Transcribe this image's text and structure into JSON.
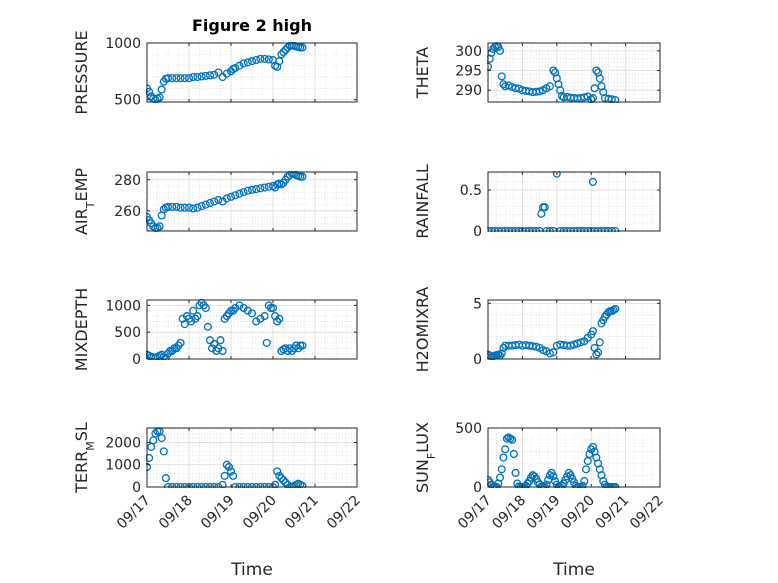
{
  "figure": {
    "title": "Figure 2 high",
    "xlabel": "Time",
    "marker_color": "#0072BD",
    "xtick_labels": [
      "09/17",
      "09/18",
      "09/19",
      "09/20",
      "09/21",
      "09/22"
    ]
  },
  "chart_data": [
    {
      "type": "scatter",
      "ylabel": "PRESSURE",
      "ylabel_sub": "",
      "xlim": [
        17,
        22
      ],
      "ylim": [
        480,
        1000
      ],
      "yticks": [
        500,
        1000
      ],
      "ytick_labels": [
        "500",
        "1000"
      ],
      "x": [
        17.0,
        17.05,
        17.1,
        17.15,
        17.2,
        17.25,
        17.3,
        17.35,
        17.4,
        17.45,
        17.5,
        17.6,
        17.7,
        17.8,
        17.9,
        18.0,
        18.1,
        18.2,
        18.3,
        18.4,
        18.5,
        18.6,
        18.7,
        18.8,
        18.9,
        19.0,
        19.05,
        19.1,
        19.2,
        19.3,
        19.4,
        19.5,
        19.6,
        19.7,
        19.8,
        19.9,
        20.0,
        20.05,
        20.1,
        20.15,
        20.2,
        20.25,
        20.3,
        20.35,
        20.4,
        20.45,
        20.5,
        20.55,
        20.6,
        20.65,
        20.7
      ],
      "y": [
        600,
        570,
        530,
        510,
        500,
        510,
        520,
        590,
        660,
        685,
        690,
        690,
        690,
        690,
        690,
        690,
        700,
        700,
        705,
        710,
        715,
        720,
        740,
        700,
        730,
        750,
        770,
        780,
        800,
        820,
        830,
        840,
        850,
        860,
        860,
        855,
        850,
        800,
        790,
        840,
        900,
        920,
        940,
        960,
        975,
        980,
        975,
        970,
        965,
        960,
        960
      ]
    },
    {
      "type": "scatter",
      "ylabel": "THETA",
      "ylabel_sub": "",
      "xlim": [
        17,
        22
      ],
      "ylim": [
        287,
        302
      ],
      "yticks": [
        290,
        295,
        300
      ],
      "ytick_labels": [
        "290",
        "295",
        "300"
      ],
      "x": [
        17.0,
        17.05,
        17.1,
        17.15,
        17.2,
        17.25,
        17.3,
        17.35,
        17.4,
        17.45,
        17.5,
        17.6,
        17.7,
        17.8,
        17.9,
        18.0,
        18.1,
        18.2,
        18.3,
        18.4,
        18.5,
        18.6,
        18.7,
        18.8,
        18.9,
        18.95,
        19.0,
        19.05,
        19.1,
        19.15,
        19.2,
        19.3,
        19.4,
        19.5,
        19.6,
        19.7,
        19.8,
        19.9,
        20.0,
        20.05,
        20.1,
        20.15,
        20.2,
        20.25,
        20.3,
        20.35,
        20.4,
        20.5,
        20.6,
        20.7
      ],
      "y": [
        296,
        298,
        299.5,
        300.5,
        301,
        301.2,
        301,
        300,
        293.5,
        291.5,
        291,
        291.2,
        290.8,
        290.5,
        290.4,
        290,
        289.8,
        289.7,
        289.5,
        289.6,
        289.7,
        290,
        290.5,
        291,
        295,
        294.5,
        293,
        291.5,
        290,
        288.5,
        288.2,
        288.3,
        288.1,
        288,
        287.9,
        288,
        288.2,
        288.4,
        287.7,
        288,
        290.5,
        295,
        294.5,
        293,
        291,
        289.5,
        288,
        287.8,
        287.7,
        287.5
      ]
    },
    {
      "type": "scatter",
      "ylabel": "AIR",
      "ylabel_sub": "T",
      "ylabel_tail": "EMP",
      "xlim": [
        17,
        22
      ],
      "ylim": [
        247,
        285
      ],
      "yticks": [
        260,
        280
      ],
      "ytick_labels": [
        "260",
        "280"
      ],
      "x": [
        17.0,
        17.05,
        17.1,
        17.15,
        17.2,
        17.25,
        17.3,
        17.35,
        17.4,
        17.45,
        17.5,
        17.6,
        17.7,
        17.8,
        17.9,
        18.0,
        18.1,
        18.2,
        18.3,
        18.4,
        18.5,
        18.6,
        18.7,
        18.8,
        18.9,
        19.0,
        19.1,
        19.2,
        19.3,
        19.4,
        19.5,
        19.6,
        19.7,
        19.8,
        19.9,
        20.0,
        20.05,
        20.1,
        20.15,
        20.2,
        20.25,
        20.3,
        20.35,
        20.4,
        20.45,
        20.5,
        20.55,
        20.6,
        20.65,
        20.7
      ],
      "y": [
        256,
        254,
        252,
        250,
        249,
        249,
        250,
        257,
        261,
        262,
        262.5,
        262.5,
        262.5,
        262,
        262,
        262,
        261.5,
        262,
        263,
        264,
        265,
        266,
        267,
        266,
        268,
        269,
        270,
        271,
        272,
        273,
        273.5,
        274,
        274.5,
        275,
        275.5,
        276,
        275,
        277,
        277.5,
        277,
        278,
        280,
        282,
        283,
        284,
        284,
        283,
        282.5,
        282,
        282
      ]
    },
    {
      "type": "scatter",
      "ylabel": "RAINFALL",
      "ylabel_sub": "",
      "xlim": [
        17,
        22
      ],
      "ylim": [
        0,
        0.72
      ],
      "yticks": [
        0,
        0.5
      ],
      "ytick_labels": [
        "0",
        "0.5"
      ],
      "x": [
        17.0,
        17.1,
        17.2,
        17.3,
        17.4,
        17.5,
        17.6,
        17.7,
        17.8,
        17.9,
        18.0,
        18.1,
        18.2,
        18.3,
        18.4,
        18.5,
        18.55,
        18.6,
        18.65,
        18.7,
        18.8,
        18.9,
        19.0,
        19.1,
        19.2,
        19.3,
        19.4,
        19.5,
        19.6,
        19.7,
        19.8,
        19.9,
        20.0,
        20.05,
        20.1,
        20.2,
        20.3,
        20.4,
        20.5,
        20.6,
        20.7
      ],
      "y": [
        0,
        0,
        0,
        0,
        0,
        0,
        0,
        0,
        0,
        0,
        0,
        0,
        0,
        0,
        0,
        0,
        0.21,
        0.29,
        0.29,
        0,
        0,
        0,
        0.7,
        0,
        0,
        0,
        0,
        0,
        0,
        0,
        0,
        0,
        0,
        0.6,
        0,
        0,
        0,
        0,
        0,
        0,
        0
      ]
    },
    {
      "type": "scatter",
      "ylabel": "MIXDEPTH",
      "ylabel_sub": "",
      "xlim": [
        17,
        22
      ],
      "ylim": [
        0,
        1100
      ],
      "yticks": [
        0,
        500,
        1000
      ],
      "ytick_labels": [
        "0",
        "500",
        "1000"
      ],
      "x": [
        17.0,
        17.05,
        17.1,
        17.15,
        17.2,
        17.25,
        17.3,
        17.35,
        17.4,
        17.45,
        17.5,
        17.55,
        17.6,
        17.65,
        17.7,
        17.75,
        17.8,
        17.85,
        17.9,
        17.95,
        18.0,
        18.05,
        18.1,
        18.15,
        18.2,
        18.25,
        18.3,
        18.35,
        18.4,
        18.45,
        18.5,
        18.55,
        18.6,
        18.65,
        18.7,
        18.75,
        18.8,
        18.85,
        18.9,
        18.95,
        19.0,
        19.05,
        19.1,
        19.2,
        19.3,
        19.4,
        19.5,
        19.6,
        19.7,
        19.8,
        19.85,
        19.9,
        19.95,
        20.0,
        20.05,
        20.1,
        20.15,
        20.2,
        20.25,
        20.3,
        20.35,
        20.4,
        20.45,
        20.5,
        20.55,
        20.6,
        20.65,
        20.7
      ],
      "y": [
        80,
        60,
        40,
        30,
        20,
        40,
        60,
        80,
        40,
        20,
        100,
        150,
        150,
        200,
        200,
        250,
        300,
        750,
        650,
        800,
        750,
        700,
        900,
        750,
        800,
        1000,
        1050,
        1000,
        950,
        600,
        350,
        200,
        280,
        150,
        200,
        350,
        150,
        750,
        800,
        850,
        900,
        900,
        950,
        1000,
        950,
        900,
        850,
        700,
        750,
        800,
        300,
        1000,
        950,
        950,
        800,
        700,
        750,
        150,
        180,
        200,
        150,
        200,
        150,
        200,
        250,
        200,
        250,
        250
      ]
    },
    {
      "type": "scatter",
      "ylabel": "H2OMIXRA",
      "ylabel_sub": "",
      "xlim": [
        17,
        22
      ],
      "ylim": [
        0,
        5.3
      ],
      "yticks": [
        0,
        5
      ],
      "ytick_labels": [
        "0",
        "5"
      ],
      "x": [
        17.0,
        17.05,
        17.1,
        17.15,
        17.2,
        17.25,
        17.3,
        17.35,
        17.4,
        17.45,
        17.5,
        17.6,
        17.7,
        17.8,
        17.9,
        18.0,
        18.1,
        18.2,
        18.3,
        18.4,
        18.5,
        18.6,
        18.7,
        18.8,
        18.9,
        19.0,
        19.1,
        19.2,
        19.3,
        19.4,
        19.5,
        19.6,
        19.7,
        19.8,
        19.9,
        20.0,
        20.05,
        20.1,
        20.15,
        20.2,
        20.25,
        20.3,
        20.35,
        20.4,
        20.45,
        20.5,
        20.55,
        20.6,
        20.65,
        20.7
      ],
      "y": [
        0.4,
        0.3,
        0.2,
        0.25,
        0.3,
        0.35,
        0.4,
        0.3,
        0.5,
        1.0,
        1.2,
        1.2,
        1.2,
        1.25,
        1.3,
        1.2,
        1.25,
        1.2,
        1.15,
        1.1,
        1.0,
        0.8,
        0.7,
        0.5,
        0.6,
        1.2,
        1.3,
        1.25,
        1.2,
        1.2,
        1.3,
        1.4,
        1.5,
        1.6,
        1.9,
        2.2,
        2.5,
        1.0,
        0.4,
        0.6,
        1.5,
        3.2,
        3.5,
        3.8,
        4.0,
        4.2,
        4.3,
        4.3,
        4.4,
        4.5
      ]
    },
    {
      "type": "scatter",
      "ylabel": "TERR",
      "ylabel_sub": "M",
      "ylabel_tail": "SL",
      "xlim": [
        17,
        22
      ],
      "ylim": [
        0,
        2650
      ],
      "yticks": [
        0,
        1000,
        2000
      ],
      "ytick_labels": [
        "0",
        "1000",
        "2000"
      ],
      "x": [
        17.0,
        17.05,
        17.1,
        17.15,
        17.2,
        17.25,
        17.3,
        17.35,
        17.4,
        17.45,
        17.5,
        17.6,
        17.7,
        17.8,
        17.9,
        18.0,
        18.1,
        18.2,
        18.3,
        18.4,
        18.5,
        18.6,
        18.7,
        18.8,
        18.85,
        18.9,
        18.95,
        19.0,
        19.05,
        19.1,
        19.2,
        19.3,
        19.4,
        19.5,
        19.6,
        19.7,
        19.8,
        19.9,
        20.0,
        20.05,
        20.1,
        20.15,
        20.2,
        20.25,
        20.3,
        20.35,
        20.4,
        20.45,
        20.5,
        20.55,
        20.6,
        20.65,
        20.7
      ],
      "y": [
        900,
        1300,
        1800,
        2100,
        2400,
        2500,
        2500,
        2200,
        1600,
        400,
        0,
        0,
        0,
        0,
        0,
        0,
        0,
        0,
        0,
        0,
        0,
        0,
        0,
        100,
        500,
        1000,
        900,
        700,
        500,
        0,
        0,
        0,
        0,
        0,
        0,
        0,
        0,
        0,
        0,
        100,
        700,
        500,
        400,
        300,
        200,
        100,
        0,
        0,
        50,
        100,
        150,
        100,
        50
      ]
    },
    {
      "type": "scatter",
      "ylabel": "SUN",
      "ylabel_sub": "F",
      "ylabel_tail": "LUX",
      "xlim": [
        17,
        22
      ],
      "ylim": [
        0,
        500
      ],
      "yticks": [
        0,
        500
      ],
      "ytick_labels": [
        "0",
        "500"
      ],
      "x": [
        17.0,
        17.05,
        17.1,
        17.15,
        17.2,
        17.25,
        17.3,
        17.35,
        17.4,
        17.45,
        17.5,
        17.55,
        17.6,
        17.65,
        17.7,
        17.75,
        17.8,
        17.85,
        17.9,
        17.95,
        18.0,
        18.05,
        18.1,
        18.15,
        18.2,
        18.25,
        18.3,
        18.35,
        18.4,
        18.45,
        18.5,
        18.55,
        18.6,
        18.65,
        18.7,
        18.75,
        18.8,
        18.85,
        18.9,
        18.95,
        19.0,
        19.05,
        19.1,
        19.15,
        19.2,
        19.25,
        19.3,
        19.35,
        19.4,
        19.45,
        19.5,
        19.55,
        19.6,
        19.65,
        19.7,
        19.75,
        19.8,
        19.85,
        19.9,
        19.95,
        20.0,
        20.05,
        20.1,
        20.15,
        20.2,
        20.25,
        20.3,
        20.35,
        20.4,
        20.45,
        20.5,
        20.55,
        20.6,
        20.65,
        20.7
      ],
      "y": [
        60,
        40,
        20,
        5,
        0,
        0,
        30,
        80,
        150,
        250,
        320,
        410,
        420,
        410,
        400,
        280,
        120,
        30,
        5,
        0,
        0,
        0,
        10,
        30,
        50,
        80,
        100,
        90,
        70,
        40,
        20,
        5,
        0,
        0,
        20,
        60,
        100,
        120,
        90,
        50,
        20,
        0,
        0,
        10,
        30,
        60,
        90,
        120,
        100,
        70,
        40,
        10,
        0,
        0,
        0,
        10,
        50,
        150,
        220,
        280,
        320,
        340,
        300,
        250,
        200,
        150,
        100,
        50,
        20,
        0,
        0,
        0,
        0,
        0,
        0
      ]
    }
  ]
}
